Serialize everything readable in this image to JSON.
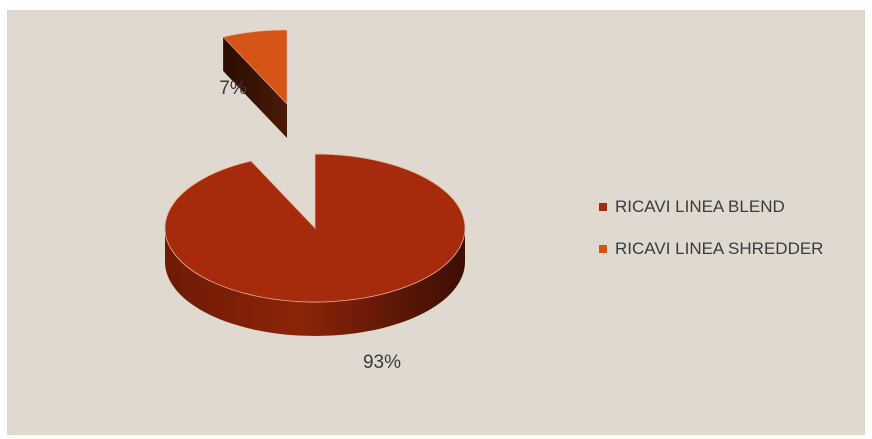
{
  "chart_data": {
    "type": "pie",
    "title": "",
    "three_d": true,
    "exploded_slice": "RICAVI LINEA SHREDDER",
    "legend_position": "right",
    "slices": [
      {
        "name": "RICAVI LINEA BLEND",
        "value": 93,
        "label": "93%",
        "color": "#a52b0c"
      },
      {
        "name": "RICAVI LINEA SHREDDER",
        "value": 7,
        "label": "7%",
        "color": "#d45516"
      }
    ]
  },
  "colors": {
    "background": "#e0d9cf"
  }
}
